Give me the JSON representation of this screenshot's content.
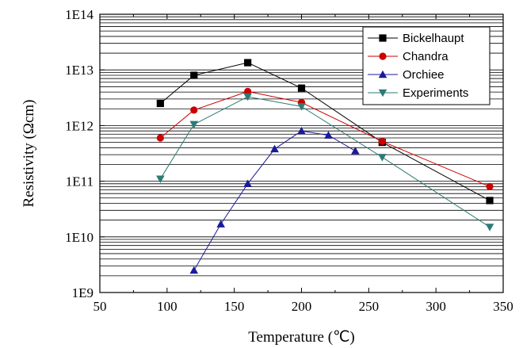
{
  "chart_data": {
    "type": "line",
    "title": "",
    "xlabel": "Temperature (℃)",
    "ylabel": "Resistivity (Ωcm)",
    "xlim": [
      50,
      350
    ],
    "ylim": [
      1000000000.0,
      100000000000000.0
    ],
    "yscale": "log",
    "grid": "horizontal, major and minor",
    "legend_position": "top-right",
    "x_ticks": [
      50,
      100,
      150,
      200,
      250,
      300,
      350
    ],
    "x_tick_labels": [
      "50",
      "100",
      "150",
      "200",
      "250",
      "300",
      "350"
    ],
    "y_ticks": [
      1000000000.0,
      10000000000.0,
      100000000000.0,
      1000000000000.0,
      10000000000000.0,
      100000000000000.0
    ],
    "y_tick_labels": [
      "1E9",
      "1E10",
      "1E11",
      "1E12",
      "1E13",
      "1E14"
    ],
    "series": [
      {
        "name": "Bickelhaupt",
        "color": "#000000",
        "marker": "square",
        "x": [
          95,
          120,
          160,
          200,
          260,
          340
        ],
        "y": [
          2500000000000.0,
          8000000000000.0,
          13500000000000.0,
          4700000000000.0,
          500000000000.0,
          45000000000.0
        ]
      },
      {
        "name": "Chandra",
        "color": "#cc0000",
        "marker": "circle",
        "x": [
          95,
          120,
          160,
          200,
          260,
          340
        ],
        "y": [
          600000000000.0,
          1900000000000.0,
          4100000000000.0,
          2600000000000.0,
          520000000000.0,
          80000000000.0
        ]
      },
      {
        "name": "Orchiee",
        "color": "#1a1a99",
        "marker": "triangle-up",
        "x": [
          120,
          140,
          160,
          180,
          200,
          220,
          240
        ],
        "y": [
          2500000000.0,
          17000000000.0,
          90000000000.0,
          380000000000.0,
          800000000000.0,
          670000000000.0,
          350000000000.0
        ]
      },
      {
        "name": "Experiments",
        "color": "#2e7b74",
        "marker": "triangle-down",
        "x": [
          95,
          120,
          160,
          200,
          260,
          340
        ],
        "y": [
          110000000000.0,
          1050000000000.0,
          3300000000000.0,
          2200000000000.0,
          270000000000.0,
          15000000000.0
        ]
      }
    ]
  }
}
